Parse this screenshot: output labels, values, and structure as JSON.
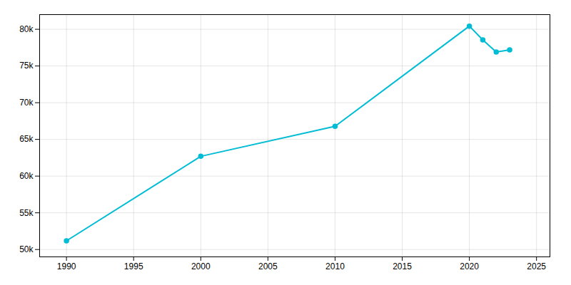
{
  "chart_data": {
    "type": "line",
    "x": [
      1990,
      2000,
      2010,
      2020,
      2021,
      2022,
      2023
    ],
    "values": [
      51182,
      62698,
      66790,
      80430,
      78560,
      76900,
      77200
    ],
    "color": "#00BCD4",
    "marker": "circle",
    "xlim": [
      1988,
      2026
    ],
    "ylim": [
      49000,
      82000
    ],
    "xticks": [
      1990,
      1995,
      2000,
      2005,
      2010,
      2015,
      2020,
      2025
    ],
    "yticks": [
      {
        "value": 50000,
        "label": "50k"
      },
      {
        "value": 55000,
        "label": "55k"
      },
      {
        "value": 60000,
        "label": "60k"
      },
      {
        "value": 65000,
        "label": "65k"
      },
      {
        "value": 70000,
        "label": "70k"
      },
      {
        "value": 75000,
        "label": "75k"
      },
      {
        "value": 80000,
        "label": "80k"
      }
    ],
    "grid": true
  }
}
